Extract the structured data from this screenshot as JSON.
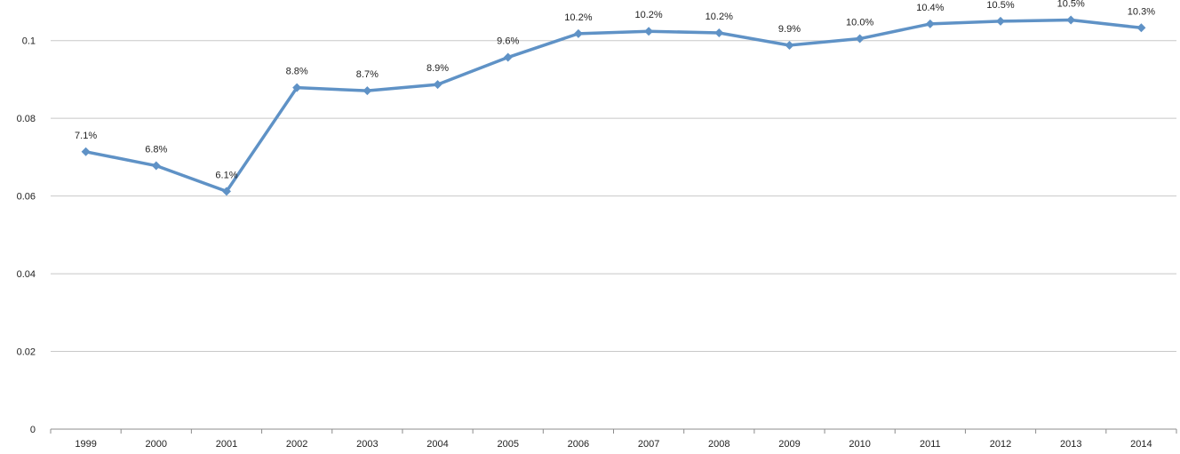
{
  "chart_data": {
    "type": "line",
    "title": "",
    "xlabel": "",
    "ylabel": "",
    "categories": [
      "1999",
      "2000",
      "2001",
      "2002",
      "2003",
      "2004",
      "2005",
      "2006",
      "2007",
      "2008",
      "2009",
      "2010",
      "2011",
      "2012",
      "2013",
      "2014"
    ],
    "series": [
      {
        "values": [
          0.0714,
          0.0678,
          0.0612,
          0.0879,
          0.0871,
          0.0887,
          0.0957,
          0.1018,
          0.1024,
          0.102,
          0.0988,
          0.1005,
          0.1043,
          0.105,
          0.1053,
          0.1033
        ],
        "labels": [
          "7.1%",
          "6.8%",
          "6.1%",
          "8.8%",
          "8.7%",
          "8.9%",
          "9.6%",
          "10.2%",
          "10.2%",
          "10.2%",
          "9.9%",
          "10.0%",
          "10.4%",
          "10.5%",
          "10.5%",
          "10.3%"
        ],
        "color": "#5f92c6"
      }
    ],
    "ylim": [
      0,
      0.11
    ],
    "yticks": [
      0,
      0.02,
      0.04,
      0.06,
      0.08,
      0.1
    ],
    "ytick_labels": [
      "0",
      "0.02",
      "0.04",
      "0.06",
      "0.08",
      "0.1"
    ],
    "grid": true,
    "legend": "none",
    "colors": {
      "line": "#5f92c6",
      "grid": "#c8c8c8",
      "axis": "#8c8c8c",
      "text": "#222222"
    }
  }
}
